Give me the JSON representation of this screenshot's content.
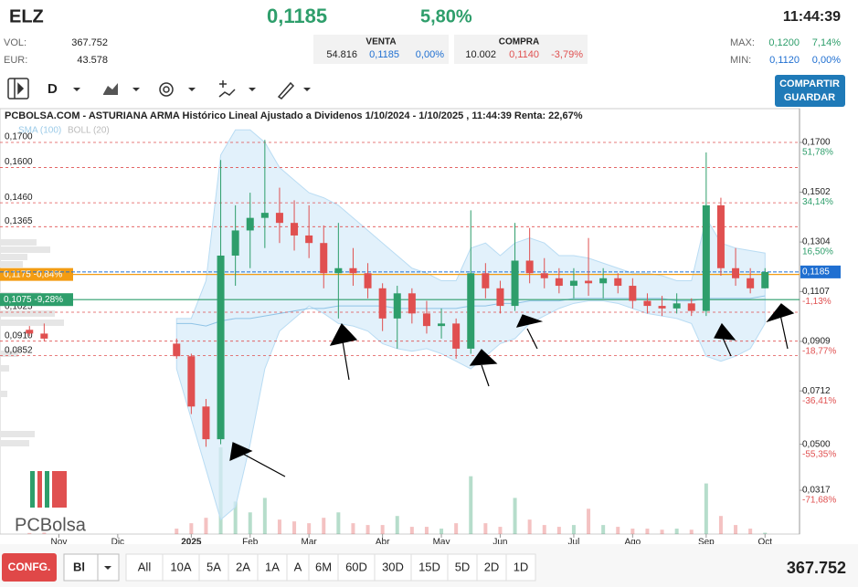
{
  "header": {
    "symbol": "ELZ",
    "price": "0,1185",
    "change": "5,80%",
    "time": "11:44:39",
    "vol_label": "VOL:",
    "vol": "367.752",
    "eur_label": "EUR:",
    "eur": "43.578",
    "venta": {
      "label": "VENTA",
      "qty": "54.816",
      "price": "0,1185",
      "pct": "0,00%"
    },
    "compra": {
      "label": "COMPRA",
      "qty": "10.002",
      "price": "0,1140",
      "pct": "-3,79%"
    },
    "max": {
      "label": "MAX:",
      "price": "0,1200",
      "pct": "7,14%"
    },
    "min": {
      "label": "MIN:",
      "price": "0,1120",
      "pct": "0,00%"
    }
  },
  "toolbar": {
    "period": "D",
    "share": "COMPARTIR",
    "save": "GUARDAR"
  },
  "chart_data": {
    "type": "candlestick",
    "title": "PCBOLSA.COM - ASTURIANA ARMA Histórico Lineal Ajustado a Dividenos 1/10/2024 - 1/10/2025 , 11:44:39 Renta: 22,67%",
    "logo": "PCBolsa",
    "sma_name": "SMA (100)",
    "boll_name": "BOLL (20)",
    "up_color": "#2e9e6b",
    "down_color": "#e05050",
    "categories": [
      null,
      null,
      null,
      null,
      "Nov",
      null,
      null,
      null,
      "Dic",
      null,
      null,
      null,
      null,
      "2025",
      null,
      null,
      null,
      "Feb",
      null,
      null,
      null,
      "Mar",
      null,
      null,
      null,
      null,
      "Abr",
      null,
      null,
      null,
      "May",
      null,
      null,
      null,
      "Jun",
      null,
      null,
      null,
      null,
      "Jul",
      null,
      null,
      null,
      "Ago",
      null,
      null,
      null,
      null,
      "Sep",
      null,
      null,
      null,
      "Oct"
    ],
    "open": [
      null,
      null,
      0.0955,
      0.094,
      null,
      null,
      null,
      null,
      null,
      null,
      null,
      null,
      0.09,
      0.085,
      0.065,
      0.052,
      0.125,
      0.135,
      0.14,
      0.142,
      0.138,
      0.133,
      0.13,
      0.118,
      0.12,
      0.118,
      0.112,
      0.1,
      0.11,
      0.102,
      0.097,
      0.098,
      0.088,
      0.118,
      0.112,
      0.105,
      0.123,
      0.118,
      0.116,
      0.113,
      0.115,
      0.114,
      0.116,
      0.113,
      0.107,
      0.105,
      0.104,
      0.106,
      0.103,
      0.145,
      0.12,
      0.116,
      0.112
    ],
    "high": [
      null,
      null,
      0.097,
      0.098,
      null,
      null,
      null,
      null,
      null,
      null,
      null,
      null,
      0.092,
      0.086,
      0.068,
      0.163,
      0.145,
      0.15,
      0.171,
      0.152,
      0.147,
      0.145,
      0.137,
      0.138,
      0.128,
      0.122,
      0.114,
      0.113,
      0.112,
      0.107,
      0.104,
      0.1,
      0.143,
      0.122,
      0.115,
      0.138,
      0.136,
      0.124,
      0.12,
      0.12,
      0.132,
      0.12,
      0.118,
      0.116,
      0.11,
      0.109,
      0.11,
      0.108,
      0.166,
      0.148,
      0.128,
      0.12,
      0.12
    ],
    "low": [
      null,
      null,
      0.093,
      0.091,
      null,
      null,
      null,
      null,
      null,
      null,
      null,
      null,
      0.084,
      0.062,
      0.049,
      0.05,
      0.113,
      0.12,
      0.128,
      0.13,
      0.127,
      0.124,
      0.112,
      0.1,
      0.113,
      0.108,
      0.095,
      0.088,
      0.098,
      0.094,
      0.092,
      0.084,
      0.086,
      0.108,
      0.102,
      0.103,
      0.114,
      0.112,
      0.11,
      0.108,
      0.109,
      0.108,
      0.11,
      0.104,
      0.102,
      0.101,
      0.102,
      0.101,
      0.101,
      0.117,
      0.113,
      0.11,
      0.112
    ],
    "close": [
      null,
      null,
      0.094,
      0.092,
      null,
      null,
      null,
      null,
      null,
      null,
      null,
      null,
      0.085,
      0.065,
      0.052,
      0.125,
      0.135,
      0.14,
      0.142,
      0.138,
      0.133,
      0.13,
      0.118,
      0.12,
      0.118,
      0.112,
      0.1,
      0.11,
      0.102,
      0.097,
      0.098,
      0.088,
      0.118,
      0.112,
      0.105,
      0.123,
      0.118,
      0.116,
      0.113,
      0.115,
      0.114,
      0.116,
      0.113,
      0.107,
      0.105,
      0.104,
      0.106,
      0.103,
      0.145,
      0.12,
      0.116,
      0.112,
      0.1185
    ],
    "volume": [
      null,
      null,
      300000,
      400000,
      null,
      null,
      null,
      null,
      null,
      null,
      null,
      null,
      1500000,
      3000000,
      4500000,
      24000000,
      9000000,
      6000000,
      10000000,
      4000000,
      3500000,
      3000000,
      4500000,
      6000000,
      3000000,
      2500000,
      2500000,
      5000000,
      2000000,
      2000000,
      1500000,
      3000000,
      16000000,
      3000000,
      2000000,
      10000000,
      4000000,
      2500000,
      2000000,
      2500000,
      7000000,
      2500000,
      2000000,
      1500000,
      1500000,
      1200000,
      1500000,
      1200000,
      14000000,
      5000000,
      2500000,
      1500000,
      367752
    ],
    "bollinger_upper": [
      null,
      null,
      null,
      null,
      null,
      null,
      null,
      null,
      null,
      null,
      null,
      null,
      0.1,
      0.1,
      0.115,
      0.165,
      0.175,
      0.175,
      0.17,
      0.16,
      0.155,
      0.15,
      0.148,
      0.145,
      0.14,
      0.135,
      0.13,
      0.125,
      0.12,
      0.118,
      0.115,
      0.115,
      0.128,
      0.13,
      0.125,
      0.13,
      0.132,
      0.13,
      0.125,
      0.125,
      0.124,
      0.122,
      0.12,
      0.118,
      0.118,
      0.117,
      0.115,
      0.115,
      0.14,
      0.13,
      0.128,
      0.127,
      0.126
    ],
    "bollinger_lower": [
      null,
      null,
      null,
      null,
      null,
      null,
      null,
      null,
      null,
      null,
      null,
      null,
      0.08,
      0.06,
      0.04,
      0.02,
      0.025,
      0.05,
      0.08,
      0.095,
      0.1,
      0.105,
      0.102,
      0.098,
      0.097,
      0.095,
      0.09,
      0.088,
      0.087,
      0.088,
      0.086,
      0.083,
      0.08,
      0.085,
      0.09,
      0.092,
      0.098,
      0.101,
      0.104,
      0.106,
      0.107,
      0.107,
      0.106,
      0.104,
      0.102,
      0.101,
      0.1,
      0.098,
      0.085,
      0.083,
      0.085,
      0.088,
      0.098
    ],
    "sma": [
      null,
      null,
      null,
      null,
      null,
      null,
      null,
      null,
      null,
      null,
      null,
      null,
      0.098,
      0.098,
      0.097,
      0.099,
      0.1,
      0.1,
      0.101,
      0.102,
      0.103,
      0.104,
      0.104,
      0.105,
      0.105,
      0.105,
      0.105,
      0.104,
      0.104,
      0.104,
      0.104,
      0.104,
      0.105,
      0.105,
      0.106,
      0.106,
      0.107,
      0.107,
      0.107,
      0.108,
      0.108,
      0.108,
      0.108,
      0.108,
      0.108,
      0.108,
      0.107,
      0.107,
      0.108,
      0.108,
      0.108,
      0.108,
      0.109
    ],
    "ylim": [
      0.0143,
      0.1729
    ],
    "yticks": [
      {
        "value": 0.17,
        "label": "0,1700"
      },
      {
        "value": 0.16,
        "label": "0,1600"
      },
      {
        "value": 0.146,
        "label": "0,1460"
      },
      {
        "value": 0.1365,
        "label": "0,1365"
      },
      {
        "value": 0.1025,
        "label": "0,1025"
      },
      {
        "value": 0.091,
        "label": "0,0910"
      },
      {
        "value": 0.0852,
        "label": "0,0852"
      }
    ],
    "markers": [
      {
        "value": 0.1175,
        "label": "0,1175 -0,84%",
        "color": "#f39c12"
      },
      {
        "value": 0.1075,
        "label": "0,1075 -9,28%",
        "color": "#2e9e6b"
      }
    ],
    "y2ticks": [
      {
        "value": 0.17,
        "label": "0,1700",
        "pct": "51,78%"
      },
      {
        "value": 0.1502,
        "label": "0,1502",
        "pct": "34,14%"
      },
      {
        "value": 0.1304,
        "label": "0,1304",
        "pct": "16,50%"
      },
      {
        "value": 0.1107,
        "label": "0,1107",
        "pct": "-1,13%"
      },
      {
        "value": 0.0909,
        "label": "0,0909",
        "pct": "-18,77%"
      },
      {
        "value": 0.0712,
        "label": "0,0712",
        "pct": "-36,41%"
      },
      {
        "value": 0.05,
        "label": "0,0500",
        "pct": "-55,35%"
      },
      {
        "value": 0.0317,
        "label": "0,0317",
        "pct": "-71,68%"
      }
    ],
    "current": {
      "value": 0.1185,
      "label": "0,1185",
      "color": "#1f6fd1"
    }
  },
  "footer": {
    "config": "CONFG.",
    "mode": "Bl",
    "ranges": [
      "All",
      "10A",
      "5A",
      "2A",
      "1A",
      "A",
      "6M",
      "60D",
      "30D",
      "15D",
      "5D",
      "2D",
      "1D"
    ],
    "volume": "367.752"
  }
}
